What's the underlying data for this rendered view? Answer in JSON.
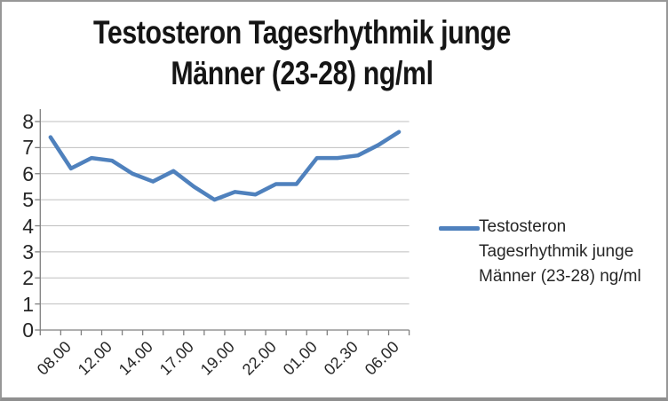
{
  "chart_title": {
    "line1": "Testosteron Tagesrhythmik  junge",
    "line2": "Männer (23-28) ng/ml"
  },
  "legend": {
    "label": "Testosteron Tagesrhythmik  junge Männer (23-28) ng/ml"
  },
  "chart_data": {
    "type": "line",
    "title": "Testosteron Tagesrhythmik  junge Männer (23-28) ng/ml",
    "series": [
      {
        "name": "Testosteron Tagesrhythmik  junge Männer (23-28) ng/ml",
        "values": [
          7.4,
          6.2,
          6.6,
          6.5,
          6.0,
          5.7,
          6.1,
          5.5,
          5.0,
          5.3,
          5.2,
          5.6,
          5.6,
          6.6,
          6.6,
          6.7,
          7.1,
          7.6
        ]
      }
    ],
    "n_points": 18,
    "x_tick_labels": [
      "08.00",
      "12.00",
      "14.00",
      "17.00",
      "19.00",
      "22.00",
      "01.00",
      "02.30",
      "06.00"
    ],
    "x_label_every_n_points": 2,
    "y_ticks": [
      0,
      1,
      2,
      3,
      4,
      5,
      6,
      7,
      8
    ],
    "ylim": [
      0,
      8
    ],
    "xlabel": "",
    "ylabel": "",
    "grid": "horizontal",
    "legend_position": "right"
  },
  "colors": {
    "line": "#4F81BD",
    "gridline": "#BFBFBF",
    "axis": "#808080",
    "text": "#262626",
    "title_text": "#151515",
    "frame_border": "#979797",
    "background": "#FFFFFF"
  }
}
